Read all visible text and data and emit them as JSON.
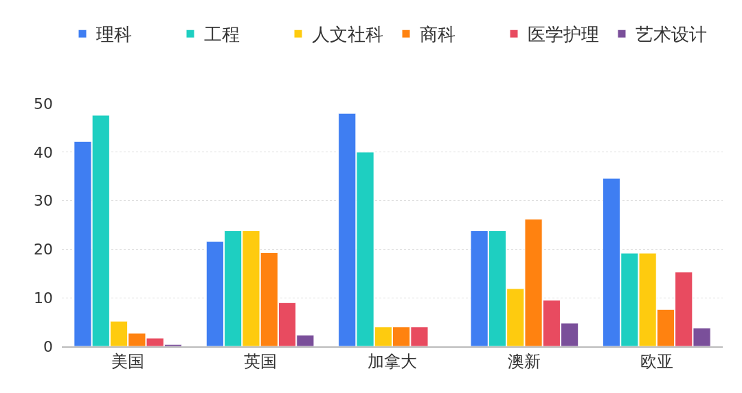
{
  "chart_data": {
    "type": "bar",
    "categories": [
      "美国",
      "英国",
      "加拿大",
      "澳新",
      "欧亚"
    ],
    "series": [
      {
        "name": "理科",
        "color": "#3f7ef2",
        "values": [
          42.2,
          21.6,
          48.0,
          23.8,
          34.6
        ]
      },
      {
        "name": "工程",
        "color": "#1ecfc1",
        "values": [
          47.6,
          23.8,
          40.0,
          23.8,
          19.2
        ]
      },
      {
        "name": "人文社科",
        "color": "#fecb0f",
        "values": [
          5.2,
          23.8,
          4.0,
          11.9,
          19.2
        ]
      },
      {
        "name": "商科",
        "color": "#ff8210",
        "values": [
          2.7,
          19.3,
          4.0,
          26.2,
          7.6
        ]
      },
      {
        "name": "医学护理",
        "color": "#e84b60",
        "values": [
          1.7,
          9.0,
          4.0,
          9.5,
          15.3
        ]
      },
      {
        "name": "艺术设计",
        "color": "#7a4f9a",
        "values": [
          0.4,
          2.3,
          null,
          4.8,
          3.8
        ]
      }
    ],
    "ylim": [
      0,
      50
    ],
    "yticks": [
      0,
      10,
      20,
      30,
      40,
      50
    ],
    "grid": "y",
    "legend": "top"
  }
}
